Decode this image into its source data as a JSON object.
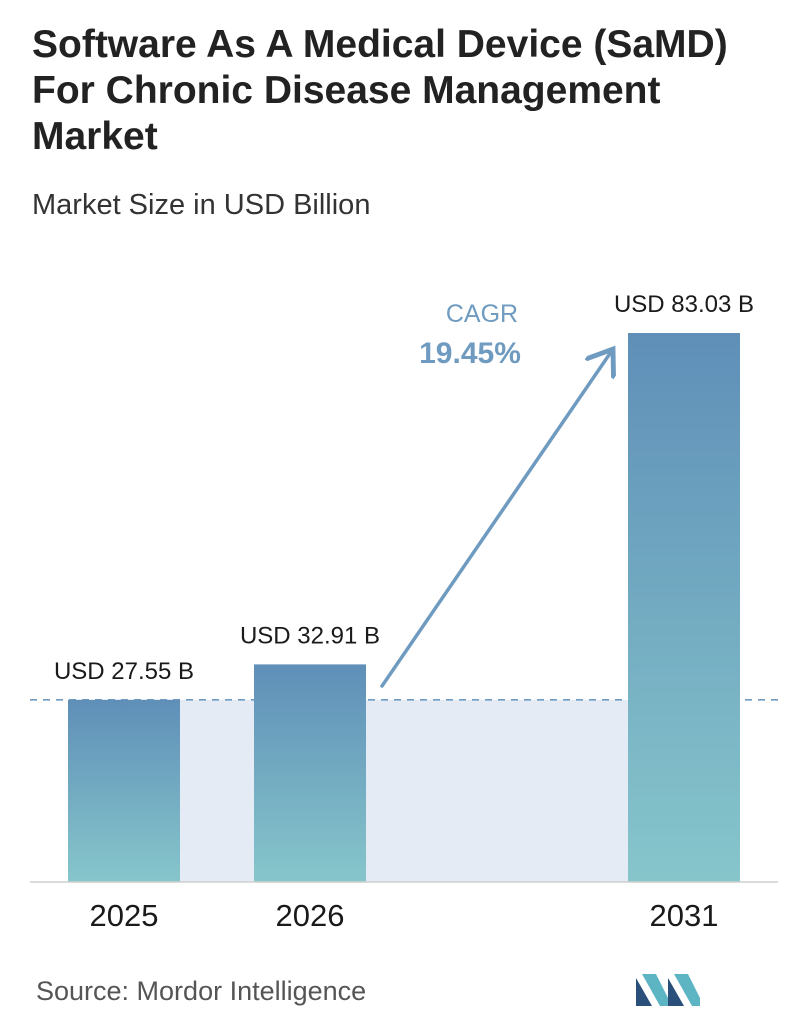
{
  "title": "Software As A Medical Device (SaMD) For Chronic Disease Management Market",
  "subtitle": "Market Size in USD Billion",
  "source": "Source:  Mordor Intelligence",
  "cagr": {
    "label": "CAGR",
    "value": "19.45%"
  },
  "colors": {
    "bar_top": "#5f8fb8",
    "bar_bottom": "#86c6cb",
    "band": "#e4ebf4",
    "accent": "#6f9bc0"
  },
  "chart_data": {
    "type": "bar",
    "categories": [
      "2025",
      "2026",
      "2031"
    ],
    "values": [
      27.55,
      32.91,
      83.03
    ],
    "value_labels": [
      "USD 27.55 B",
      "USD 32.91 B",
      "USD 83.03 B"
    ],
    "title": "Software As A Medical Device (SaMD) For Chronic Disease Management Market",
    "subtitle": "Market Size in USD Billion",
    "ylim": [
      0,
      83.03
    ],
    "grid": false,
    "reference_line": 27.55
  }
}
